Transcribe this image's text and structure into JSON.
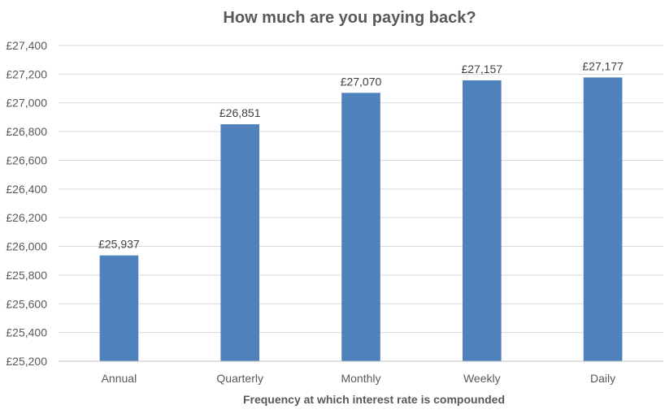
{
  "chart_data": {
    "type": "bar",
    "title": "How much are you paying back?",
    "xlabel": "Frequency at which interest rate is compounded",
    "ylabel": "",
    "categories": [
      "Annual",
      "Quarterly",
      "Monthly",
      "Weekly",
      "Daily"
    ],
    "values": [
      25937,
      26851,
      27070,
      27157,
      27177
    ],
    "data_labels": [
      "£25,937",
      "£26,851",
      "£27,070",
      "£27,157",
      "£27,177"
    ],
    "ylim": [
      25200,
      27400
    ],
    "yticks": [
      25200,
      25400,
      25600,
      25800,
      26000,
      26200,
      26400,
      26600,
      26800,
      27000,
      27200,
      27400
    ],
    "ytick_labels": [
      "£25,200",
      "£25,400",
      "£25,600",
      "£25,800",
      "£26,000",
      "£26,200",
      "£26,400",
      "£26,600",
      "£26,800",
      "£27,000",
      "£27,200",
      "£27,400"
    ],
    "grid": true,
    "legend": "none",
    "bar_color": "#4f81bd"
  }
}
